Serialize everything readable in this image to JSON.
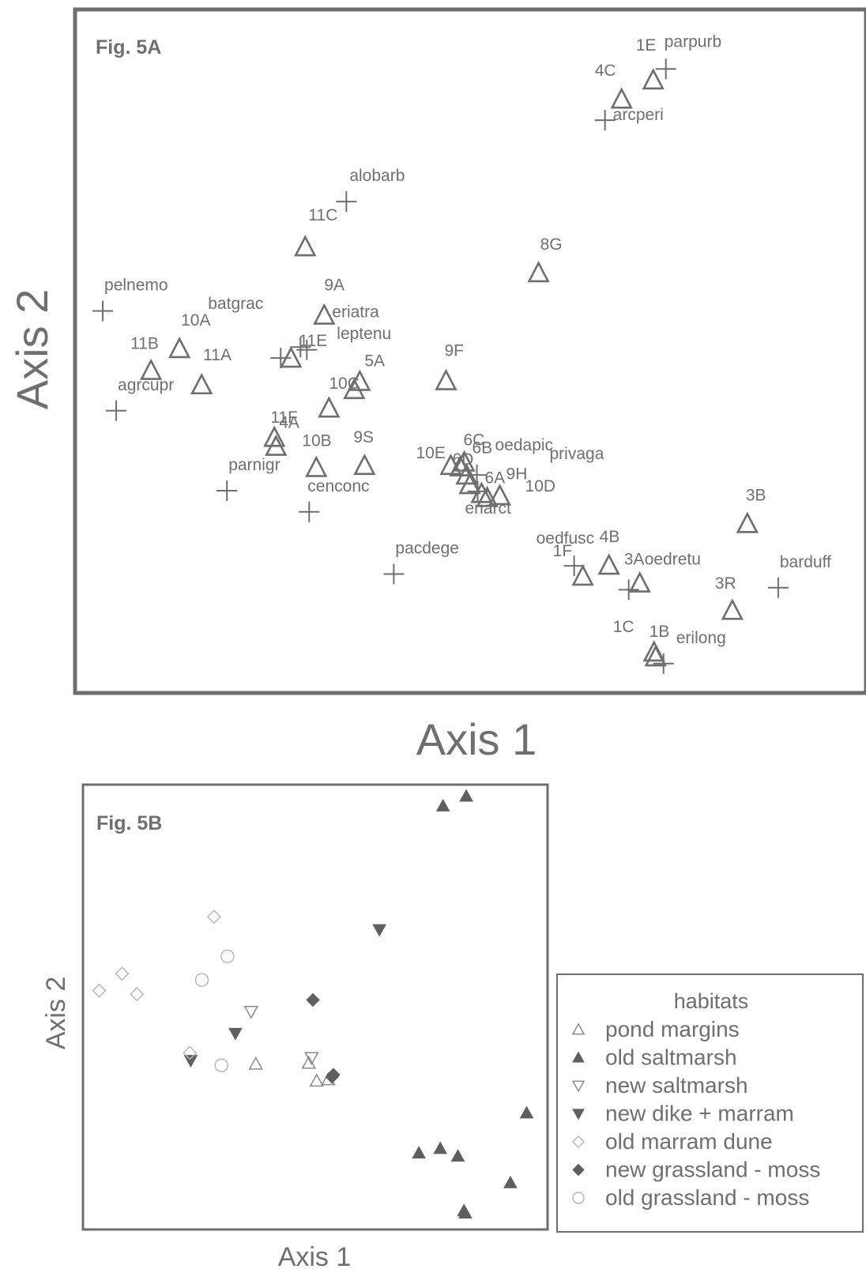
{
  "chart_data": [
    {
      "type": "scatter",
      "title": "Fig. 5A",
      "xlabel": "Axis 1",
      "ylabel": "Axis 2",
      "xlim": [
        0,
        100
      ],
      "ylim": [
        0,
        100
      ],
      "series": [
        {
          "name": "sites",
          "marker": "open-triangle",
          "points": [
            {
              "label": "1E",
              "x": 73.1,
              "y": 89.6
            },
            {
              "label": "4C",
              "x": 69.1,
              "y": 86.8
            },
            {
              "label": "11C",
              "x": 29.1,
              "y": 65.2
            },
            {
              "label": "8G",
              "x": 58.6,
              "y": 61.4
            },
            {
              "label": "9A",
              "x": 31.5,
              "y": 55.2
            },
            {
              "label": "10A",
              "x": 13.2,
              "y": 50.3
            },
            {
              "label": "11B",
              "x": 9.6,
              "y": 47.1
            },
            {
              "label": "11A",
              "x": 16.0,
              "y": 45.0
            },
            {
              "label": "11E",
              "x": 27.3,
              "y": 48.9
            },
            {
              "label": "5A",
              "x": 36.0,
              "y": 45.5
            },
            {
              "label": "10C",
              "x": 35.3,
              "y": 44.3
            },
            {
              "label": "9F",
              "x": 46.9,
              "y": 45.6
            },
            {
              "label": "11F",
              "x": 32.1,
              "y": 41.6
            },
            {
              "label": "4A",
              "x": 25.4,
              "y": 36.0
            },
            {
              "label": "4A",
              "x": 25.2,
              "y": 37.3
            },
            {
              "label": "10B",
              "x": 30.5,
              "y": 32.9
            },
            {
              "label": "9S",
              "x": 36.6,
              "y": 33.2
            },
            {
              "label": "10E",
              "x": 47.5,
              "y": 33.2
            },
            {
              "label": "6B",
              "x": 49.2,
              "y": 33.7
            },
            {
              "label": "6C",
              "x": 48.7,
              "y": 33.0
            },
            {
              "label": "6D",
              "x": 49.5,
              "y": 31.8
            },
            {
              "label": "6A",
              "x": 51.4,
              "y": 29.1
            },
            {
              "label": "oedapic",
              "x": 49.9,
              "y": 30.4
            },
            {
              "label": "9H",
              "x": 52.1,
              "y": 28.5
            },
            {
              "label": "10D",
              "x": 53.7,
              "y": 28.8
            },
            {
              "label": "3B",
              "x": 85.0,
              "y": 24.7
            },
            {
              "label": "4B",
              "x": 67.5,
              "y": 18.6
            },
            {
              "label": "1F",
              "x": 64.2,
              "y": 17.0
            },
            {
              "label": "3A",
              "x": 71.4,
              "y": 16.0
            },
            {
              "label": "3R",
              "x": 83.1,
              "y": 12.0
            },
            {
              "label": "1C",
              "x": 73.2,
              "y": 5.9
            },
            {
              "label": "1B",
              "x": 73.4,
              "y": 5.2
            }
          ]
        },
        {
          "name": "species",
          "marker": "plus",
          "points": [
            {
              "label": "parpurb",
              "x": 74.7,
              "y": 91.3
            },
            {
              "label": "arcperi",
              "x": 67.0,
              "y": 83.8
            },
            {
              "label": "alobarb",
              "x": 34.3,
              "y": 71.9
            },
            {
              "label": "pelnemo",
              "x": 3.5,
              "y": 55.9
            },
            {
              "label": "batgrac",
              "x": 26.0,
              "y": 49.0
            },
            {
              "label": "eriatra",
              "x": 28.5,
              "y": 50.6
            },
            {
              "label": "leptenu",
              "x": 29.3,
              "y": 50.2
            },
            {
              "label": "agrcupr",
              "x": 5.2,
              "y": 41.3
            },
            {
              "label": "privaga",
              "x": 50.8,
              "y": 31.9
            },
            {
              "label": "parnigr",
              "x": 19.2,
              "y": 29.6
            },
            {
              "label": "cenconc",
              "x": 29.6,
              "y": 26.5
            },
            {
              "label": "eriarct",
              "x": 50.9,
              "y": 29.5
            },
            {
              "label": "pacdege",
              "x": 40.3,
              "y": 17.4
            },
            {
              "label": "oedfusc",
              "x": 63.1,
              "y": 18.6
            },
            {
              "label": "oedretu",
              "x": 70.0,
              "y": 15.1
            },
            {
              "label": "barduff",
              "x": 88.9,
              "y": 15.4
            },
            {
              "label": "erilong",
              "x": 74.4,
              "y": 4.3
            }
          ]
        }
      ]
    },
    {
      "type": "scatter",
      "title": "Fig. 5B",
      "xlabel": "Axis 1",
      "ylabel": "Axis 2",
      "xlim": [
        0,
        100
      ],
      "ylim": [
        0,
        100
      ],
      "legend": {
        "title": "habitats",
        "position": "right-bottom",
        "entries": [
          {
            "key": "pond",
            "label": "pond margins",
            "symbol": "△",
            "color": "#8a8a8a"
          },
          {
            "key": "oldsalt",
            "label": "old saltmarsh",
            "symbol": "▲",
            "color": "#5f5f5f"
          },
          {
            "key": "newsalt",
            "label": "new saltmarsh",
            "symbol": "▽",
            "color": "#8a8a8a"
          },
          {
            "key": "newdike",
            "label": "new dike + marram",
            "symbol": "▼",
            "color": "#5f5f5f"
          },
          {
            "key": "oldmarram",
            "label": "old marram dune",
            "symbol": "◇",
            "color": "#b8b8b8"
          },
          {
            "key": "newgrass",
            "label": "new grassland - moss",
            "symbol": "◆",
            "color": "#5f5f5f"
          },
          {
            "key": "oldgrass",
            "label": "old grassland - moss",
            "symbol": "○",
            "color": "#b8b8b8"
          }
        ]
      },
      "series": [
        {
          "key": "oldsalt",
          "name": "old saltmarsh",
          "points": [
            {
              "x": 77.5,
              "y": 95.2
            },
            {
              "x": 82.5,
              "y": 97.4
            },
            {
              "x": 72.3,
              "y": 17.2
            },
            {
              "x": 76.9,
              "y": 18.2
            },
            {
              "x": 80.7,
              "y": 16.5
            },
            {
              "x": 95.5,
              "y": 26.2
            },
            {
              "x": 92.0,
              "y": 10.5
            },
            {
              "x": 82.0,
              "y": 4.2
            },
            {
              "x": 82.3,
              "y": 3.7
            }
          ]
        },
        {
          "key": "newdike",
          "name": "new dike + marram",
          "points": [
            {
              "x": 63.8,
              "y": 67.4
            },
            {
              "x": 32.8,
              "y": 44.1
            },
            {
              "x": 23.2,
              "y": 38.0
            }
          ]
        },
        {
          "key": "oldmarram",
          "name": "old marram dune",
          "points": [
            {
              "x": 28.2,
              "y": 70.3
            },
            {
              "x": 8.4,
              "y": 57.5
            },
            {
              "x": 3.5,
              "y": 53.7
            },
            {
              "x": 11.6,
              "y": 52.9
            },
            {
              "x": 23.0,
              "y": 39.7
            }
          ]
        },
        {
          "key": "oldgrass",
          "name": "old grassland - moss",
          "points": [
            {
              "x": 31.1,
              "y": 61.4
            },
            {
              "x": 25.6,
              "y": 56.1
            },
            {
              "x": 29.8,
              "y": 36.9
            }
          ]
        },
        {
          "key": "newsalt",
          "name": "new saltmarsh",
          "points": [
            {
              "x": 36.2,
              "y": 49.0
            },
            {
              "x": 49.2,
              "y": 38.6
            }
          ]
        },
        {
          "key": "pond",
          "name": "pond margins",
          "points": [
            {
              "x": 37.2,
              "y": 37.2
            },
            {
              "x": 48.6,
              "y": 37.4
            },
            {
              "x": 50.3,
              "y": 33.4
            },
            {
              "x": 52.8,
              "y": 33.7
            }
          ]
        },
        {
          "key": "newgrass",
          "name": "new grassland - moss",
          "points": [
            {
              "x": 49.5,
              "y": 51.6
            },
            {
              "x": 53.9,
              "y": 34.8
            },
            {
              "x": 53.6,
              "y": 34.3
            }
          ]
        }
      ]
    }
  ]
}
